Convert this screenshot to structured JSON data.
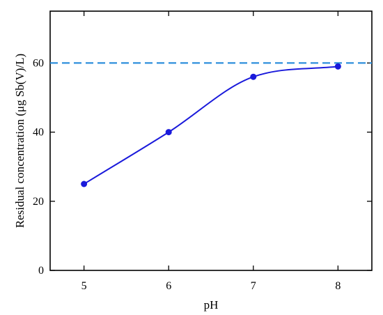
{
  "chart_data": {
    "type": "line",
    "xlabel": "pH",
    "ylabel": "Residual concentration (μg Sb(V)/L)",
    "xlim": [
      4.6,
      8.4
    ],
    "ylim": [
      0,
      75
    ],
    "xticks": [
      5,
      6,
      7,
      8
    ],
    "yticks": [
      0,
      20,
      40,
      60
    ],
    "series": [
      {
        "x": [
          5,
          6,
          7,
          8
        ],
        "y": [
          25,
          40,
          56,
          59
        ],
        "color": "#1a1adb",
        "marker": "circle",
        "smooth": true
      }
    ],
    "reference_line": {
      "y": 60,
      "color": "#2e8fdc",
      "style": "dashed"
    },
    "grid": false,
    "legend": "none"
  }
}
